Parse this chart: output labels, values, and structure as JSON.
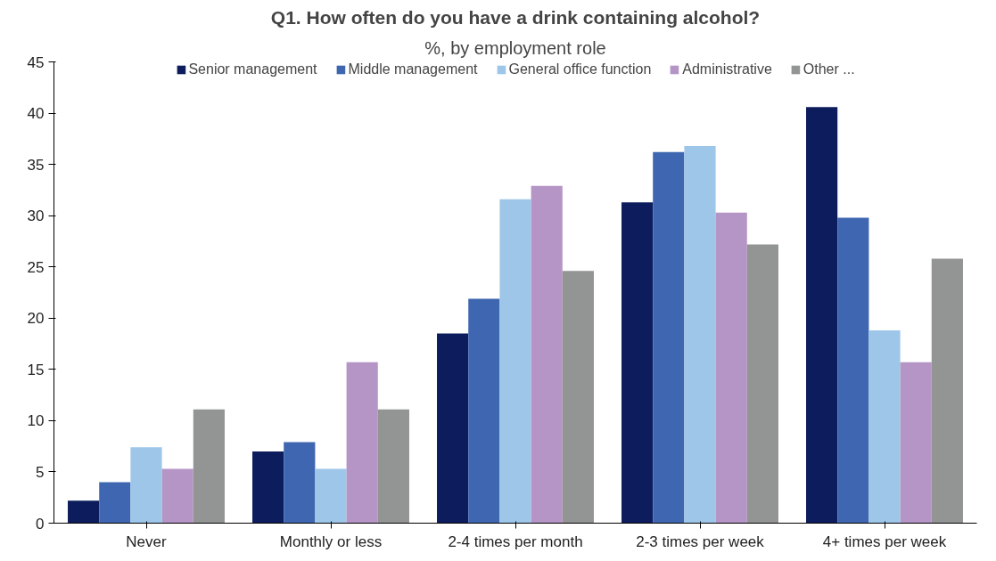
{
  "chart_data": {
    "type": "bar",
    "title": "Q1. How often do you have a drink containing alcohol?",
    "subtitle": "%, by employment role",
    "categories": [
      "Never",
      "Monthly or less",
      "2-4 times per month",
      "2-3 times per week",
      "4+ times per week"
    ],
    "series": [
      {
        "name": "Senior management",
        "color": "#0d1c5c",
        "values": [
          2.2,
          7.0,
          18.5,
          31.3,
          40.6
        ]
      },
      {
        "name": "Middle management",
        "color": "#3f66b0",
        "values": [
          4.0,
          7.9,
          21.9,
          36.2,
          29.8
        ]
      },
      {
        "name": "General office function",
        "color": "#9dc6e9",
        "values": [
          7.4,
          5.3,
          31.6,
          36.8,
          18.8
        ]
      },
      {
        "name": "Administrative",
        "color": "#b595c5",
        "values": [
          5.3,
          15.7,
          32.9,
          30.3,
          15.7
        ]
      },
      {
        "name": "Other ...",
        "color": "#939494",
        "values": [
          11.1,
          11.1,
          24.6,
          27.2,
          25.8
        ]
      }
    ],
    "ylim": [
      0,
      45
    ],
    "yticks": [
      0,
      5,
      10,
      15,
      20,
      25,
      30,
      35,
      40,
      45
    ],
    "grid": false,
    "legend": "top"
  }
}
